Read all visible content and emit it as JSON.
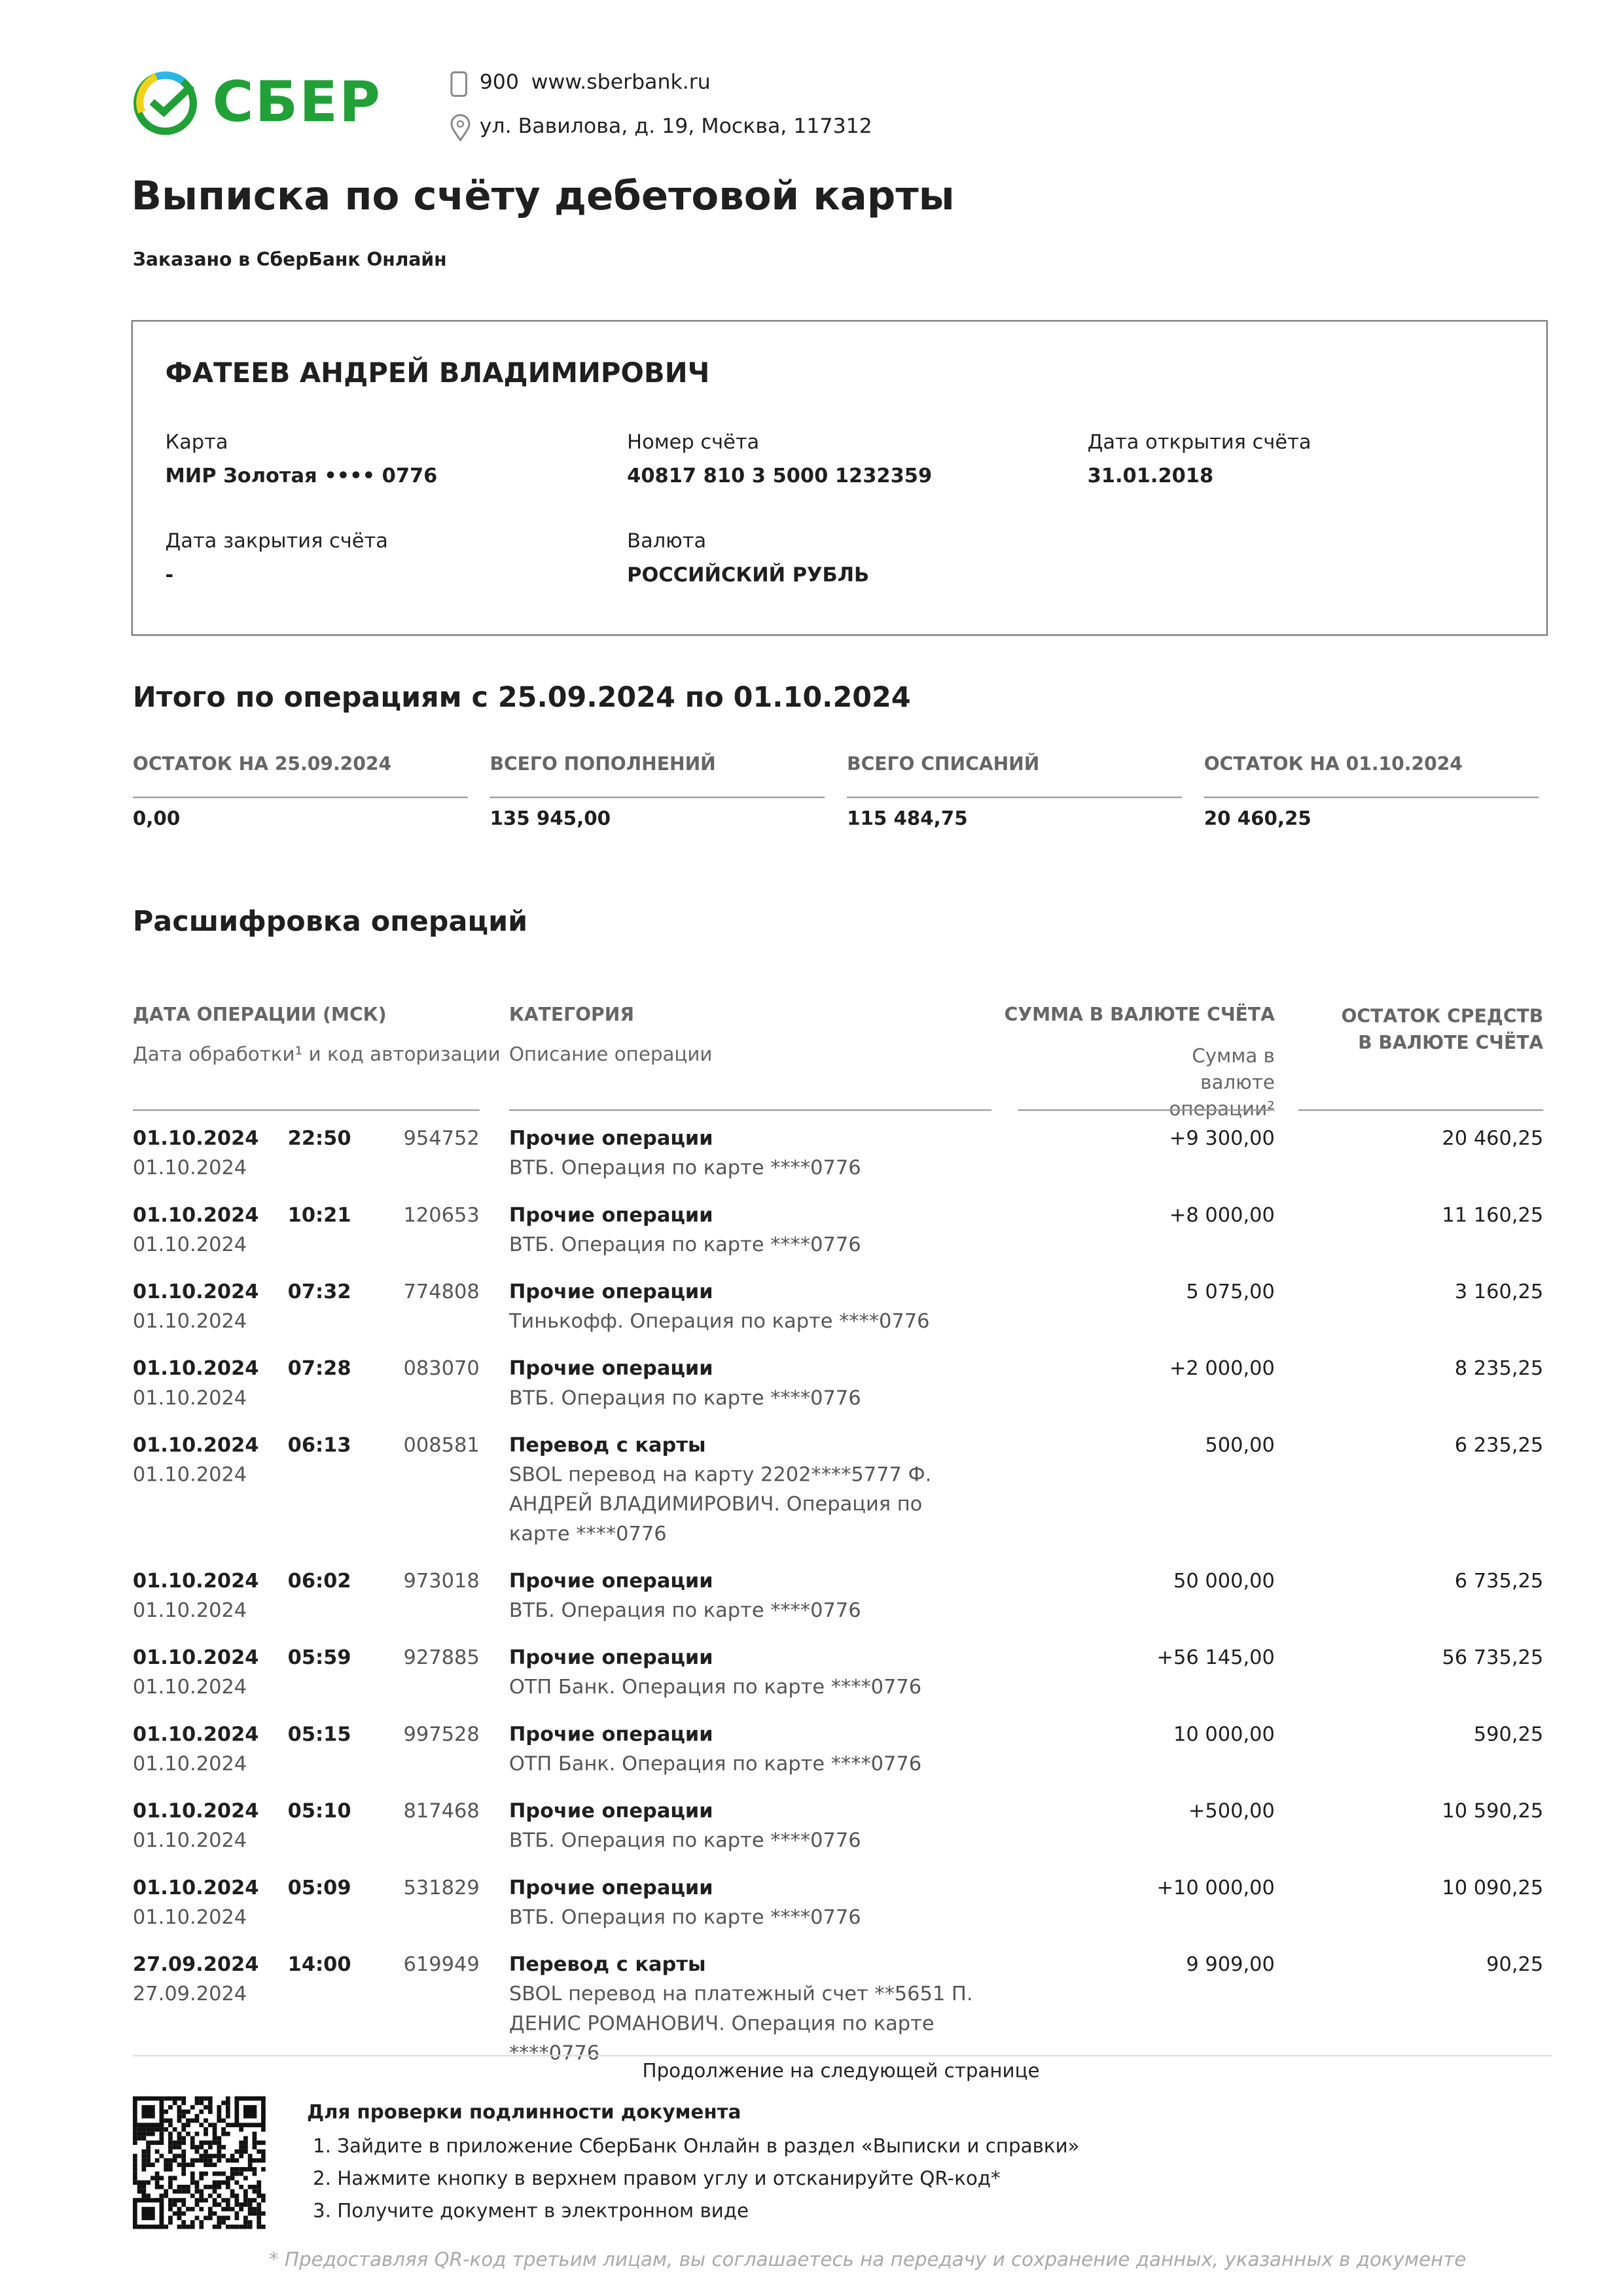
{
  "header": {
    "logo_text": "СБЕР",
    "phone": "900",
    "website": "www.sberbank.ru",
    "address": "ул. Вавилова, д. 19, Москва, 117312"
  },
  "title": "Выписка по счёту дебетовой карты",
  "subtitle": "Заказано в СберБанк Онлайн",
  "client": {
    "name": "ФАТЕЕВ АНДРЕЙ ВЛАДИМИРОВИЧ",
    "fields": [
      {
        "label": "Карта",
        "value": "МИР Золотая •••• 0776"
      },
      {
        "label": "Номер счёта",
        "value": "40817 810 3 5000 1232359"
      },
      {
        "label": "Дата открытия счёта",
        "value": "31.01.2018"
      },
      {
        "label": "Дата закрытия счёта",
        "value": "-"
      },
      {
        "label": "Валюта",
        "value": "РОССИЙСКИЙ РУБЛЬ"
      }
    ]
  },
  "summary": {
    "title": "Итого по операциям с 25.09.2024 по 01.10.2024",
    "items": [
      {
        "label": "ОСТАТОК НА 25.09.2024",
        "value": "0,00"
      },
      {
        "label": "ВСЕГО ПОПОЛНЕНИЙ",
        "value": "135 945,00"
      },
      {
        "label": "ВСЕГО СПИСАНИЙ",
        "value": "115 484,75"
      },
      {
        "label": "ОСТАТОК НА 01.10.2024",
        "value": "20 460,25"
      }
    ]
  },
  "operations": {
    "title": "Расшифровка операций",
    "headers": {
      "date": "ДАТА ОПЕРАЦИИ (МСК)",
      "date_sub": "Дата обработки¹ и код авторизации",
      "category": "КАТЕГОРИЯ",
      "category_sub": "Описание операции",
      "amount": "СУММА В ВАЛЮТЕ СЧЁТА",
      "amount_sub": "Сумма в валюте операции²",
      "balance": "ОСТАТОК СРЕДСТВ В ВАЛЮТЕ СЧЁТА"
    },
    "rows": [
      {
        "date": "01.10.2024",
        "time": "22:50",
        "code": "954752",
        "processed": "01.10.2024",
        "category": "Прочие операции",
        "description": "ВТБ. Операция по карте ****0776",
        "amount": "+9 300,00",
        "balance": "20 460,25"
      },
      {
        "date": "01.10.2024",
        "time": "10:21",
        "code": "120653",
        "processed": "01.10.2024",
        "category": "Прочие операции",
        "description": "ВТБ. Операция по карте ****0776",
        "amount": "+8 000,00",
        "balance": "11 160,25"
      },
      {
        "date": "01.10.2024",
        "time": "07:32",
        "code": "774808",
        "processed": "01.10.2024",
        "category": "Прочие операции",
        "description": "Тинькофф. Операция по карте ****0776",
        "amount": "5 075,00",
        "balance": "3 160,25"
      },
      {
        "date": "01.10.2024",
        "time": "07:28",
        "code": "083070",
        "processed": "01.10.2024",
        "category": "Прочие операции",
        "description": "ВТБ. Операция по карте ****0776",
        "amount": "+2 000,00",
        "balance": "8 235,25"
      },
      {
        "date": "01.10.2024",
        "time": "06:13",
        "code": "008581",
        "processed": "01.10.2024",
        "category": "Перевод с карты",
        "description": "SBOL перевод на карту 2202****5777 Ф. АНДРЕЙ ВЛАДИМИРОВИЧ. Операция по карте ****0776",
        "amount": "500,00",
        "balance": "6 235,25"
      },
      {
        "date": "01.10.2024",
        "time": "06:02",
        "code": "973018",
        "processed": "01.10.2024",
        "category": "Прочие операции",
        "description": "ВТБ. Операция по карте ****0776",
        "amount": "50 000,00",
        "balance": "6 735,25"
      },
      {
        "date": "01.10.2024",
        "time": "05:59",
        "code": "927885",
        "processed": "01.10.2024",
        "category": "Прочие операции",
        "description": "ОТП Банк. Операция по карте ****0776",
        "amount": "+56 145,00",
        "balance": "56 735,25"
      },
      {
        "date": "01.10.2024",
        "time": "05:15",
        "code": "997528",
        "processed": "01.10.2024",
        "category": "Прочие операции",
        "description": "ОТП Банк. Операция по карте ****0776",
        "amount": "10 000,00",
        "balance": "590,25"
      },
      {
        "date": "01.10.2024",
        "time": "05:10",
        "code": "817468",
        "processed": "01.10.2024",
        "category": "Прочие операции",
        "description": "ВТБ. Операция по карте ****0776",
        "amount": "+500,00",
        "balance": "10 590,25"
      },
      {
        "date": "01.10.2024",
        "time": "05:09",
        "code": "531829",
        "processed": "01.10.2024",
        "category": "Прочие операции",
        "description": "ВТБ. Операция по карте ****0776",
        "amount": "+10 000,00",
        "balance": "10 090,25"
      },
      {
        "date": "27.09.2024",
        "time": "14:00",
        "code": "619949",
        "processed": "27.09.2024",
        "category": "Перевод с карты",
        "description": "SBOL перевод на платежный счет **5651 П. ДЕНИС РОМАНОВИЧ. Операция по карте ****0776",
        "amount": "9 909,00",
        "balance": "90,25"
      }
    ]
  },
  "footer": {
    "continued": "Продолжение на следующей странице",
    "verify_title": "Для проверки подлинности документа",
    "steps": [
      "1. Зайдите в приложение СберБанк Онлайн в раздел «Выписки и справки»",
      "2. Нажмите кнопку в верхнем правом углу и отсканируйте QR-код*",
      "3. Получите документ в электронном виде"
    ],
    "note": "* Предоставляя QR-код третьим лицам, вы соглашаетесь на передачу и сохранение данных, указанных в документе"
  }
}
